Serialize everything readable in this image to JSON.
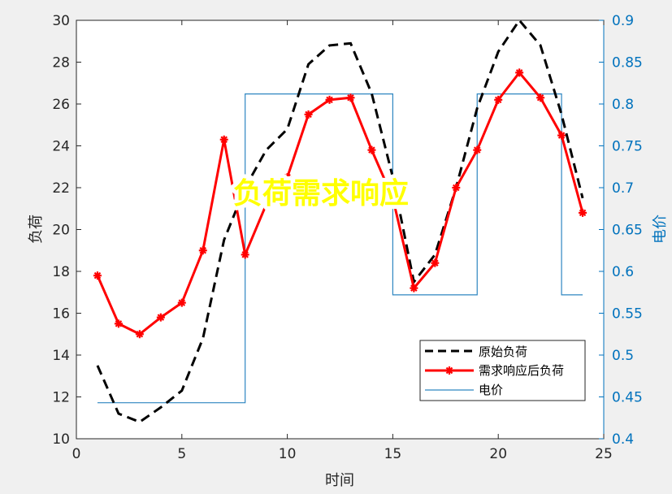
{
  "chart_data": {
    "type": "line",
    "title": "",
    "overlay_text": "负荷需求响应",
    "xlabel": "时间",
    "ylabel_left": "负荷",
    "ylabel_right": "电价",
    "xlim": [
      0,
      25
    ],
    "ylim_left": [
      10,
      30
    ],
    "ylim_right": [
      0.4,
      0.9
    ],
    "xticks": [
      0,
      5,
      10,
      15,
      20,
      25
    ],
    "yticks_left": [
      10,
      12,
      14,
      16,
      18,
      20,
      22,
      24,
      26,
      28,
      30
    ],
    "yticks_right": [
      0.4,
      0.45,
      0.5,
      0.55,
      0.6,
      0.65,
      0.7,
      0.75,
      0.8,
      0.85,
      0.9
    ],
    "ytick_labels_left": [
      "10",
      "12",
      "14",
      "16",
      "18",
      "20",
      "22",
      "24",
      "26",
      "28",
      "30"
    ],
    "ytick_labels_right": [
      "0.4",
      "0.45",
      "0.5",
      "0.55",
      "0.6",
      "0.65",
      "0.7",
      "0.75",
      "0.8",
      "0.85",
      "0.9"
    ],
    "xtick_labels": [
      "0",
      "5",
      "10",
      "15",
      "20",
      "25"
    ],
    "legend_position": "bottom-right",
    "series": [
      {
        "name": "原始负荷",
        "axis": "left",
        "style": "dashed",
        "color": "#000000",
        "x": [
          1,
          2,
          3,
          4,
          5,
          6,
          7,
          8,
          9,
          10,
          11,
          12,
          13,
          14,
          15,
          16,
          17,
          18,
          19,
          20,
          21,
          22,
          23,
          24
        ],
        "values": [
          13.5,
          11.2,
          10.8,
          11.5,
          12.3,
          14.8,
          19.5,
          22.0,
          23.8,
          24.8,
          27.9,
          28.8,
          28.9,
          26.5,
          22.5,
          17.5,
          18.8,
          22.0,
          25.8,
          28.5,
          30.0,
          28.8,
          25.5,
          21.5
        ]
      },
      {
        "name": "需求响应后负荷",
        "axis": "left",
        "style": "solid-marker",
        "color": "#ff0000",
        "x": [
          1,
          2,
          3,
          4,
          5,
          6,
          7,
          8,
          9,
          10,
          11,
          12,
          13,
          14,
          15,
          16,
          17,
          18,
          19,
          20,
          21,
          22,
          23,
          24
        ],
        "values": [
          17.8,
          15.5,
          15.0,
          15.8,
          16.5,
          19.0,
          24.3,
          18.8,
          21.2,
          22.5,
          25.5,
          26.2,
          26.3,
          23.8,
          21.5,
          17.2,
          18.4,
          22.0,
          23.8,
          26.2,
          27.5,
          26.3,
          24.5,
          20.8
        ]
      },
      {
        "name": "电价",
        "axis": "right",
        "style": "step",
        "color": "#2e86c1",
        "x": [
          1,
          7,
          7,
          8,
          8,
          14,
          14,
          15,
          15,
          18,
          18,
          19,
          19,
          22,
          22,
          23,
          23,
          24
        ],
        "values": [
          0.443,
          0.443,
          0.443,
          0.443,
          0.812,
          0.812,
          0.812,
          0.812,
          0.572,
          0.572,
          0.572,
          0.572,
          0.812,
          0.812,
          0.812,
          0.812,
          0.572,
          0.572
        ]
      }
    ]
  },
  "colors": {
    "left_axis": "#000000",
    "right_axis": "#0072bd",
    "overlay_fill": "#ffff00"
  }
}
